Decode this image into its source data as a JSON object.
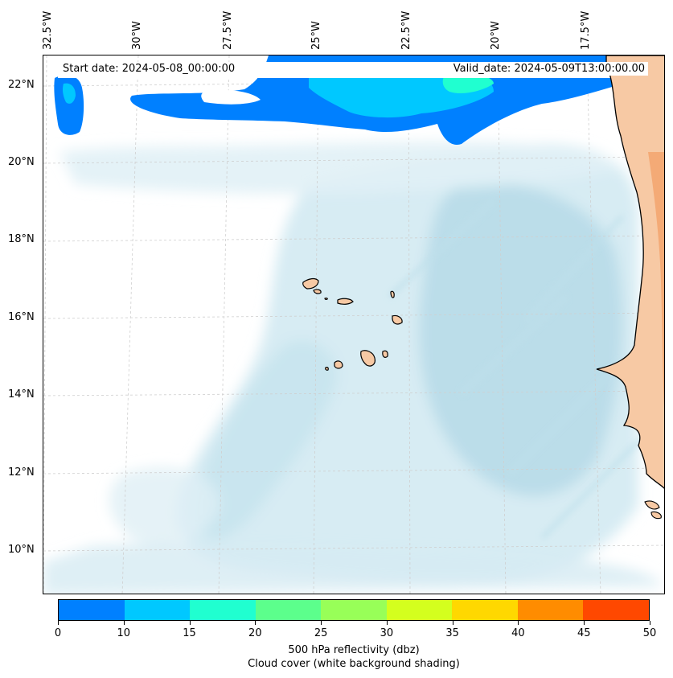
{
  "map": {
    "start_date": "Start date: 2024-05-08_00:00:00",
    "valid_date": "Valid_date: 2024-05-09T13:00:00.00",
    "lon_labels": [
      "32.5°W",
      "30°W",
      "27.5°W",
      "25°W",
      "22.5°W",
      "20°W",
      "17.5°W"
    ],
    "lat_labels": [
      "22°N",
      "20°N",
      "18°N",
      "16°N",
      "14°N",
      "12°N",
      "10°N"
    ],
    "land_color": "#f7c9a4",
    "coast_color": "#f08a40",
    "cloud_color": "#b9dde9"
  },
  "colorbar": {
    "ticks": [
      "0",
      "10",
      "15",
      "20",
      "25",
      "30",
      "35",
      "40",
      "45",
      "50"
    ],
    "colors": [
      "#0080ff",
      "#00c8ff",
      "#20ffd0",
      "#5cff8c",
      "#98ff58",
      "#d4ff1e",
      "#ffd800",
      "#ff8c00",
      "#ff4800"
    ],
    "title_line1": "500 hPa reflectivity (dbz)",
    "title_line2": "Cloud cover (white background shading)"
  }
}
